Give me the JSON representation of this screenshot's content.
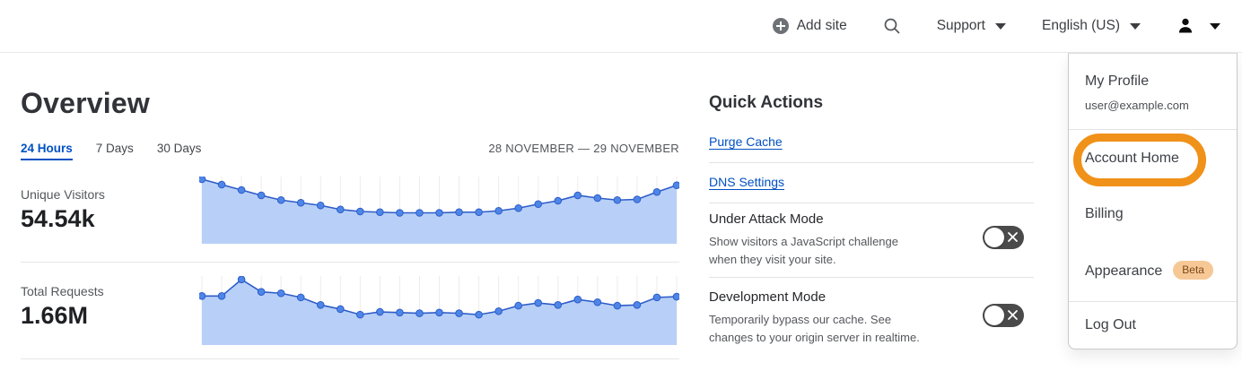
{
  "topbar": {
    "add_site": "Add site",
    "support": "Support",
    "language": "English (US)"
  },
  "overview": {
    "title": "Overview",
    "tabs": [
      {
        "label": "24 Hours",
        "active": true
      },
      {
        "label": "7 Days",
        "active": false
      },
      {
        "label": "30 Days",
        "active": false
      }
    ],
    "date_range": "28 NOVEMBER — 29 NOVEMBER"
  },
  "chart_data": [
    {
      "type": "area",
      "label": "Unique Visitors",
      "display_value": "54.54k",
      "x_range": "28 NOVEMBER — 29 NOVEMBER",
      "grid": "vertical-light",
      "legend": false,
      "ylim": [
        0,
        1
      ],
      "values": [
        0.96,
        0.88,
        0.8,
        0.72,
        0.65,
        0.61,
        0.57,
        0.51,
        0.48,
        0.47,
        0.46,
        0.46,
        0.46,
        0.47,
        0.47,
        0.49,
        0.53,
        0.59,
        0.64,
        0.72,
        0.68,
        0.65,
        0.66,
        0.77,
        0.87
      ]
    },
    {
      "type": "area",
      "label": "Total Requests",
      "display_value": "1.66M",
      "x_range": "28 NOVEMBER — 29 NOVEMBER",
      "grid": "vertical-light",
      "legend": false,
      "ylim": [
        0,
        1
      ],
      "values": [
        0.71,
        0.71,
        0.95,
        0.77,
        0.75,
        0.69,
        0.58,
        0.52,
        0.44,
        0.48,
        0.47,
        0.46,
        0.47,
        0.46,
        0.44,
        0.49,
        0.57,
        0.61,
        0.58,
        0.66,
        0.62,
        0.57,
        0.58,
        0.69,
        0.7
      ]
    }
  ],
  "quick_actions": {
    "title": "Quick Actions",
    "links": [
      "Purge Cache",
      "DNS Settings"
    ],
    "toggles": [
      {
        "title": "Under Attack Mode",
        "description": "Show visitors a JavaScript challenge when they visit your site.",
        "state": "off"
      },
      {
        "title": "Development Mode",
        "description": "Temporarily bypass our cache. See changes to your origin server in realtime.",
        "state": "off"
      }
    ]
  },
  "user_menu": {
    "profile_label": "My Profile",
    "email": "user@example.com",
    "items": [
      {
        "label": "Account Home",
        "highlighted": true
      },
      {
        "label": "Billing"
      },
      {
        "label": "Appearance",
        "badge": "Beta"
      },
      {
        "label": "Log Out"
      }
    ]
  },
  "colors": {
    "accent_blue": "#0051c3",
    "chart_line": "#2d5cc8",
    "chart_fill": "#b8d0f7",
    "chart_dot": "#4e86e8",
    "chart_grid": "#ececec",
    "toggle_off_bg": "#4a4a4b",
    "annotation_orange": "#f09119",
    "beta_badge_bg": "#f6c896",
    "beta_badge_text": "#7c4a16"
  }
}
